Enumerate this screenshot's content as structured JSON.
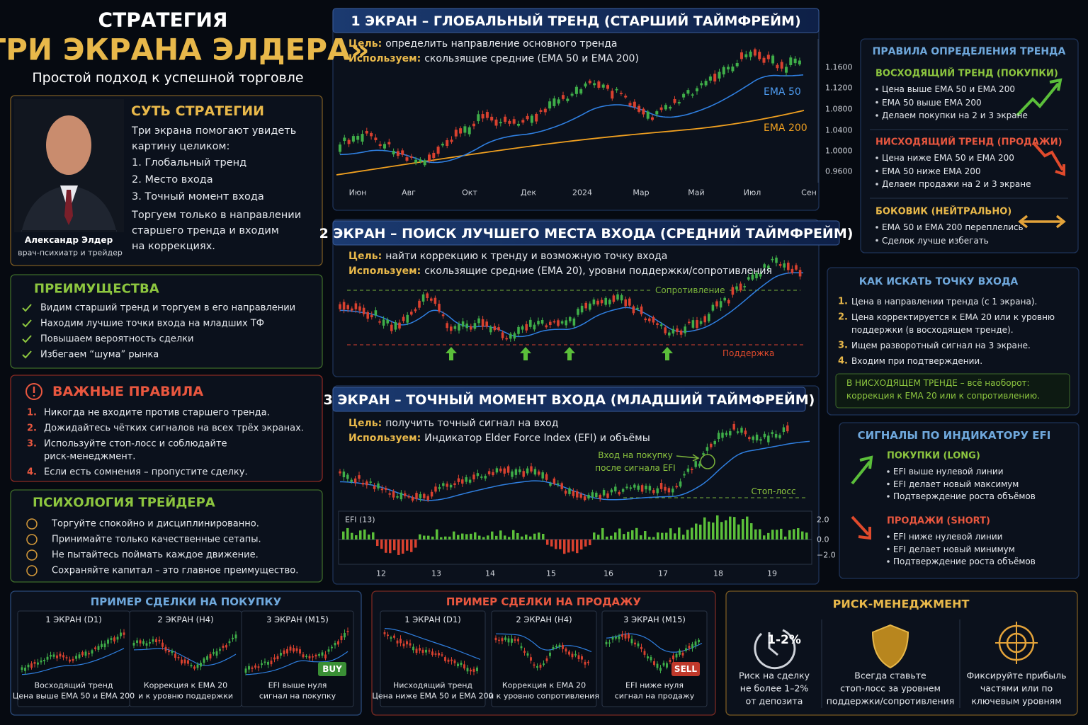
{
  "header": {
    "line1": "СТРАТЕГИЯ",
    "line2": "«ТРИ ЭКРАНА ЭЛДЕРА»",
    "subtitle": "Простой подход к успешной торговле"
  },
  "essence": {
    "heading": "СУТЬ СТРАТЕГИИ",
    "lines": [
      "Три экрана помогают увидеть",
      "картину целиком:",
      "1. Глобальный тренд",
      "2. Место входа",
      "3. Точный момент входа",
      "Торгуем только в направлении",
      "старшего тренда и входим",
      "на коррекциях."
    ],
    "name": "Александр Элдер",
    "role": "врач-психиатр и трейдер"
  },
  "advantages": {
    "heading": "ПРЕИМУЩЕСТВА",
    "items": [
      "Видим старший тренд и торгуем в его направлении",
      "Находим лучшие точки входа на младших ТФ",
      "Повышаем вероятность сделки",
      "Избегаем “шума” рынка"
    ]
  },
  "rules": {
    "heading": "ВАЖНЫЕ ПРАВИЛА",
    "items": [
      {
        "number": "1.",
        "lines": [
          "Никогда не входите против старшего тренда."
        ]
      },
      {
        "number": "2.",
        "lines": [
          "Дожидайтесь чётких сигналов на всех трёх экранах."
        ]
      },
      {
        "number": "3.",
        "lines": [
          "Используйте стоп-лосс и соблюдайте",
          "риск-менеджмент."
        ]
      },
      {
        "number": "4.",
        "lines": [
          "Если есть сомнения – пропустите сделку."
        ]
      }
    ]
  },
  "psychology": {
    "heading": "ПСИХОЛОГИЯ ТРЕЙДЕРА",
    "items": [
      "Торгуйте спокойно и дисциплинированно.",
      "Принимайте только качественные сетапы.",
      "Не пытайтесь поймать каждое движение.",
      "Сохраняйте капитал – это главное преимущество."
    ]
  },
  "screen1": {
    "title": "1 ЭКРАН – ГЛОБАЛЬНЫЙ ТРЕНД (СТАРШИЙ ТАЙМФРЕЙМ)",
    "goal_label": "Цель:",
    "goal": "определить направление основного тренда",
    "use_label": "Используем:",
    "use": "скользящие средние (EMA 50 и EMA 200)",
    "x_labels": [
      "Июн",
      "Авг",
      "Окт",
      "Дек",
      "2024",
      "Мар",
      "Май",
      "Июл",
      "Сен"
    ],
    "y_labels": [
      "1.1600",
      "1.1200",
      "1.0800",
      "1.0400",
      "1.0000",
      "0.9600"
    ],
    "ema_fast": "EMA 50",
    "ema_slow": "EMA 200"
  },
  "screen2": {
    "title": "2 ЭКРАН – ПОИСК ЛУЧШЕГО МЕСТА ВХОДА (СРЕДНИЙ ТАЙМФРЕЙМ)",
    "goal_label": "Цель:",
    "goal": "найти коррекцию к тренду и возможную точку входа",
    "use_label": "Используем:",
    "use": "скользящие средние (EMA 20), уровни поддержки/сопротивления",
    "resistance": "Сопротивление",
    "support": "Поддержка"
  },
  "screen3": {
    "title": "3 ЭКРАН – ТОЧНЫЙ МОМЕНТ ВХОДА (МЛАДШИЙ ТАЙМФРЕЙМ)",
    "goal_label": "Цель:",
    "goal": "получить точный сигнал на вход",
    "use_label": "Используем:",
    "use": "Индикатор Elder Force Index (EFI) и объёмы",
    "entry_note": [
      "Вход на покупку",
      "после сигнала EFI"
    ],
    "stop": "Стоп-лосс",
    "efi_label": "EFI (13)",
    "efi_y_labels": [
      "2.0",
      "0.0",
      "−2.0"
    ],
    "x_labels": [
      "12",
      "13",
      "14",
      "15",
      "16",
      "17",
      "18",
      "19"
    ]
  },
  "trend_rules": {
    "heading": "ПРАВИЛА ОПРЕДЕЛЕНИЯ ТРЕНДА",
    "groups": [
      {
        "heading": "ВОСХОДЯЩИЙ ТРЕНД (ПОКУПКИ)",
        "items": [
          "Цена выше EMA 50 и EMA 200",
          "EMA 50 выше EMA 200",
          "Делаем покупки на 2 и 3 экране"
        ]
      },
      {
        "heading": "НИСХОДЯЩИЙ ТРЕНД (ПРОДАЖИ)",
        "items": [
          "Цена ниже EMA 50 и EMA 200",
          "EMA 50 ниже EMA 200",
          "Делаем продажи на 2 и 3 экране"
        ]
      },
      {
        "heading": "БОКОВИК (НЕЙТРАЛЬНО)",
        "items": [
          "EMA 50 и EMA 200 переплелись",
          "Сделок лучше избегать"
        ]
      }
    ]
  },
  "entry": {
    "heading": "КАК ИСКАТЬ ТОЧКУ ВХОДА",
    "items": [
      {
        "number": "1.",
        "lines": [
          "Цена в направлении тренда (с 1 экрана)."
        ]
      },
      {
        "number": "2.",
        "lines": [
          "Цена корректируется к EMA 20 или к уровню",
          "поддержки (в восходящем тренде)."
        ]
      },
      {
        "number": "3.",
        "lines": [
          "Ищем разворотный сигнал на 3 экране."
        ]
      },
      {
        "number": "4.",
        "lines": [
          "Входим при подтверждении."
        ]
      }
    ],
    "note": [
      "В НИСХОДЯЩЕМ ТРЕНДЕ – всё наоборот:",
      "коррекция к EMA 20 или к сопротивлению."
    ]
  },
  "efi": {
    "heading": "СИГНАЛЫ ПО ИНДИКАТОРУ EFI",
    "groups": [
      {
        "heading": "ПОКУПКИ (LONG)",
        "items": [
          "EFI выше нулевой линии",
          "EFI делает новый максимум",
          "Подтверждение роста объёмов"
        ]
      },
      {
        "heading": "ПРОДАЖИ (SHORT)",
        "items": [
          "EFI ниже нулевой линии",
          "EFI делает новый минимум",
          "Подтверждение роста объёмов"
        ]
      }
    ]
  },
  "buy_example": {
    "heading": "ПРИМЕР СДЕЛКИ НА ПОКУПКУ",
    "panels": [
      {
        "title": "1 ЭКРАН (D1)",
        "caption": [
          "Восходящий тренд",
          "Цена выше EMA 50 и EMA 200"
        ]
      },
      {
        "title": "2 ЭКРАН (H4)",
        "caption": [
          "Коррекция к EMA 20",
          "и к уровню поддержки"
        ]
      },
      {
        "title": "3 ЭКРАН (M15)",
        "caption": [
          "EFI выше нуля",
          "сигнал на покупку"
        ]
      }
    ],
    "badge": "BUY"
  },
  "sell_example": {
    "heading": "ПРИМЕР СДЕЛКИ НА ПРОДАЖУ",
    "panels": [
      {
        "title": "1 ЭКРАН (D1)",
        "caption": [
          "Нисходящий тренд",
          "Цена ниже EMA 50 и EMA 200"
        ]
      },
      {
        "title": "2 ЭКРАН (H4)",
        "caption": [
          "Коррекция к EMA 20",
          "и к уровню сопротивления"
        ]
      },
      {
        "title": "3 ЭКРАН (M15)",
        "caption": [
          "EFI ниже нуля",
          "сигнал на продажу"
        ]
      }
    ],
    "badge": "SELL"
  },
  "risk": {
    "heading": "РИСК-МЕНЕДЖМЕНТ",
    "icon_label": "1-2%",
    "items": [
      [
        "Риск на сделку",
        "не более 1–2%",
        "от депозита"
      ],
      [
        "Всегда ставьте",
        "стоп-лосс за уровнем",
        "поддержки/сопротивления"
      ],
      [
        "Фиксируйте прибыль",
        "частями или по",
        "ключевым уровням"
      ]
    ]
  }
}
